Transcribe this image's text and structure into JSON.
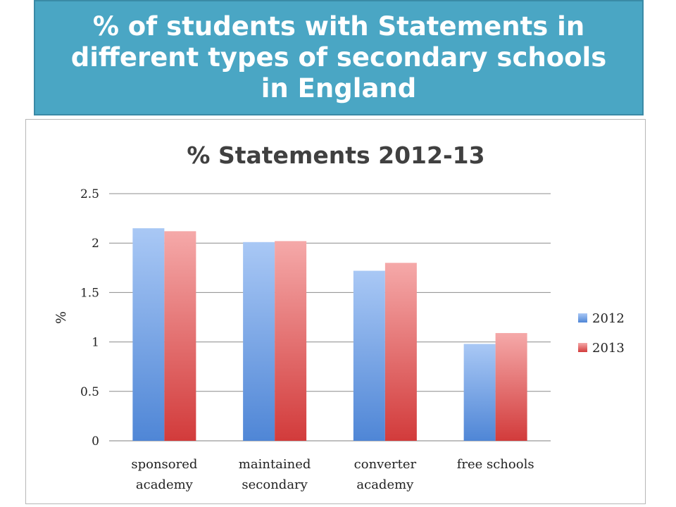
{
  "banner": {
    "title": "% of students with Statements in different types of secondary schools in England"
  },
  "chart_data": {
    "type": "bar",
    "title": "% Statements 2012-13",
    "xlabel": "",
    "ylabel": "%",
    "ylim": [
      0,
      2.5
    ],
    "yticks": [
      "0",
      "0.5",
      "1",
      "1.5",
      "2",
      "2.5"
    ],
    "grid": true,
    "legend_position": "right",
    "categories": [
      [
        "sponsored",
        "academy"
      ],
      [
        "maintained",
        "secondary"
      ],
      [
        "converter",
        "academy"
      ],
      [
        "free schools"
      ]
    ],
    "series": [
      {
        "name": "2012",
        "color": "#4f86d6",
        "color_light": "#a9c8f5",
        "values": [
          2.15,
          2.01,
          1.72,
          0.98
        ]
      },
      {
        "name": "2013",
        "color": "#d23b3b",
        "color_light": "#f5a9a9",
        "values": [
          2.12,
          2.02,
          1.8,
          1.09
        ]
      }
    ]
  }
}
